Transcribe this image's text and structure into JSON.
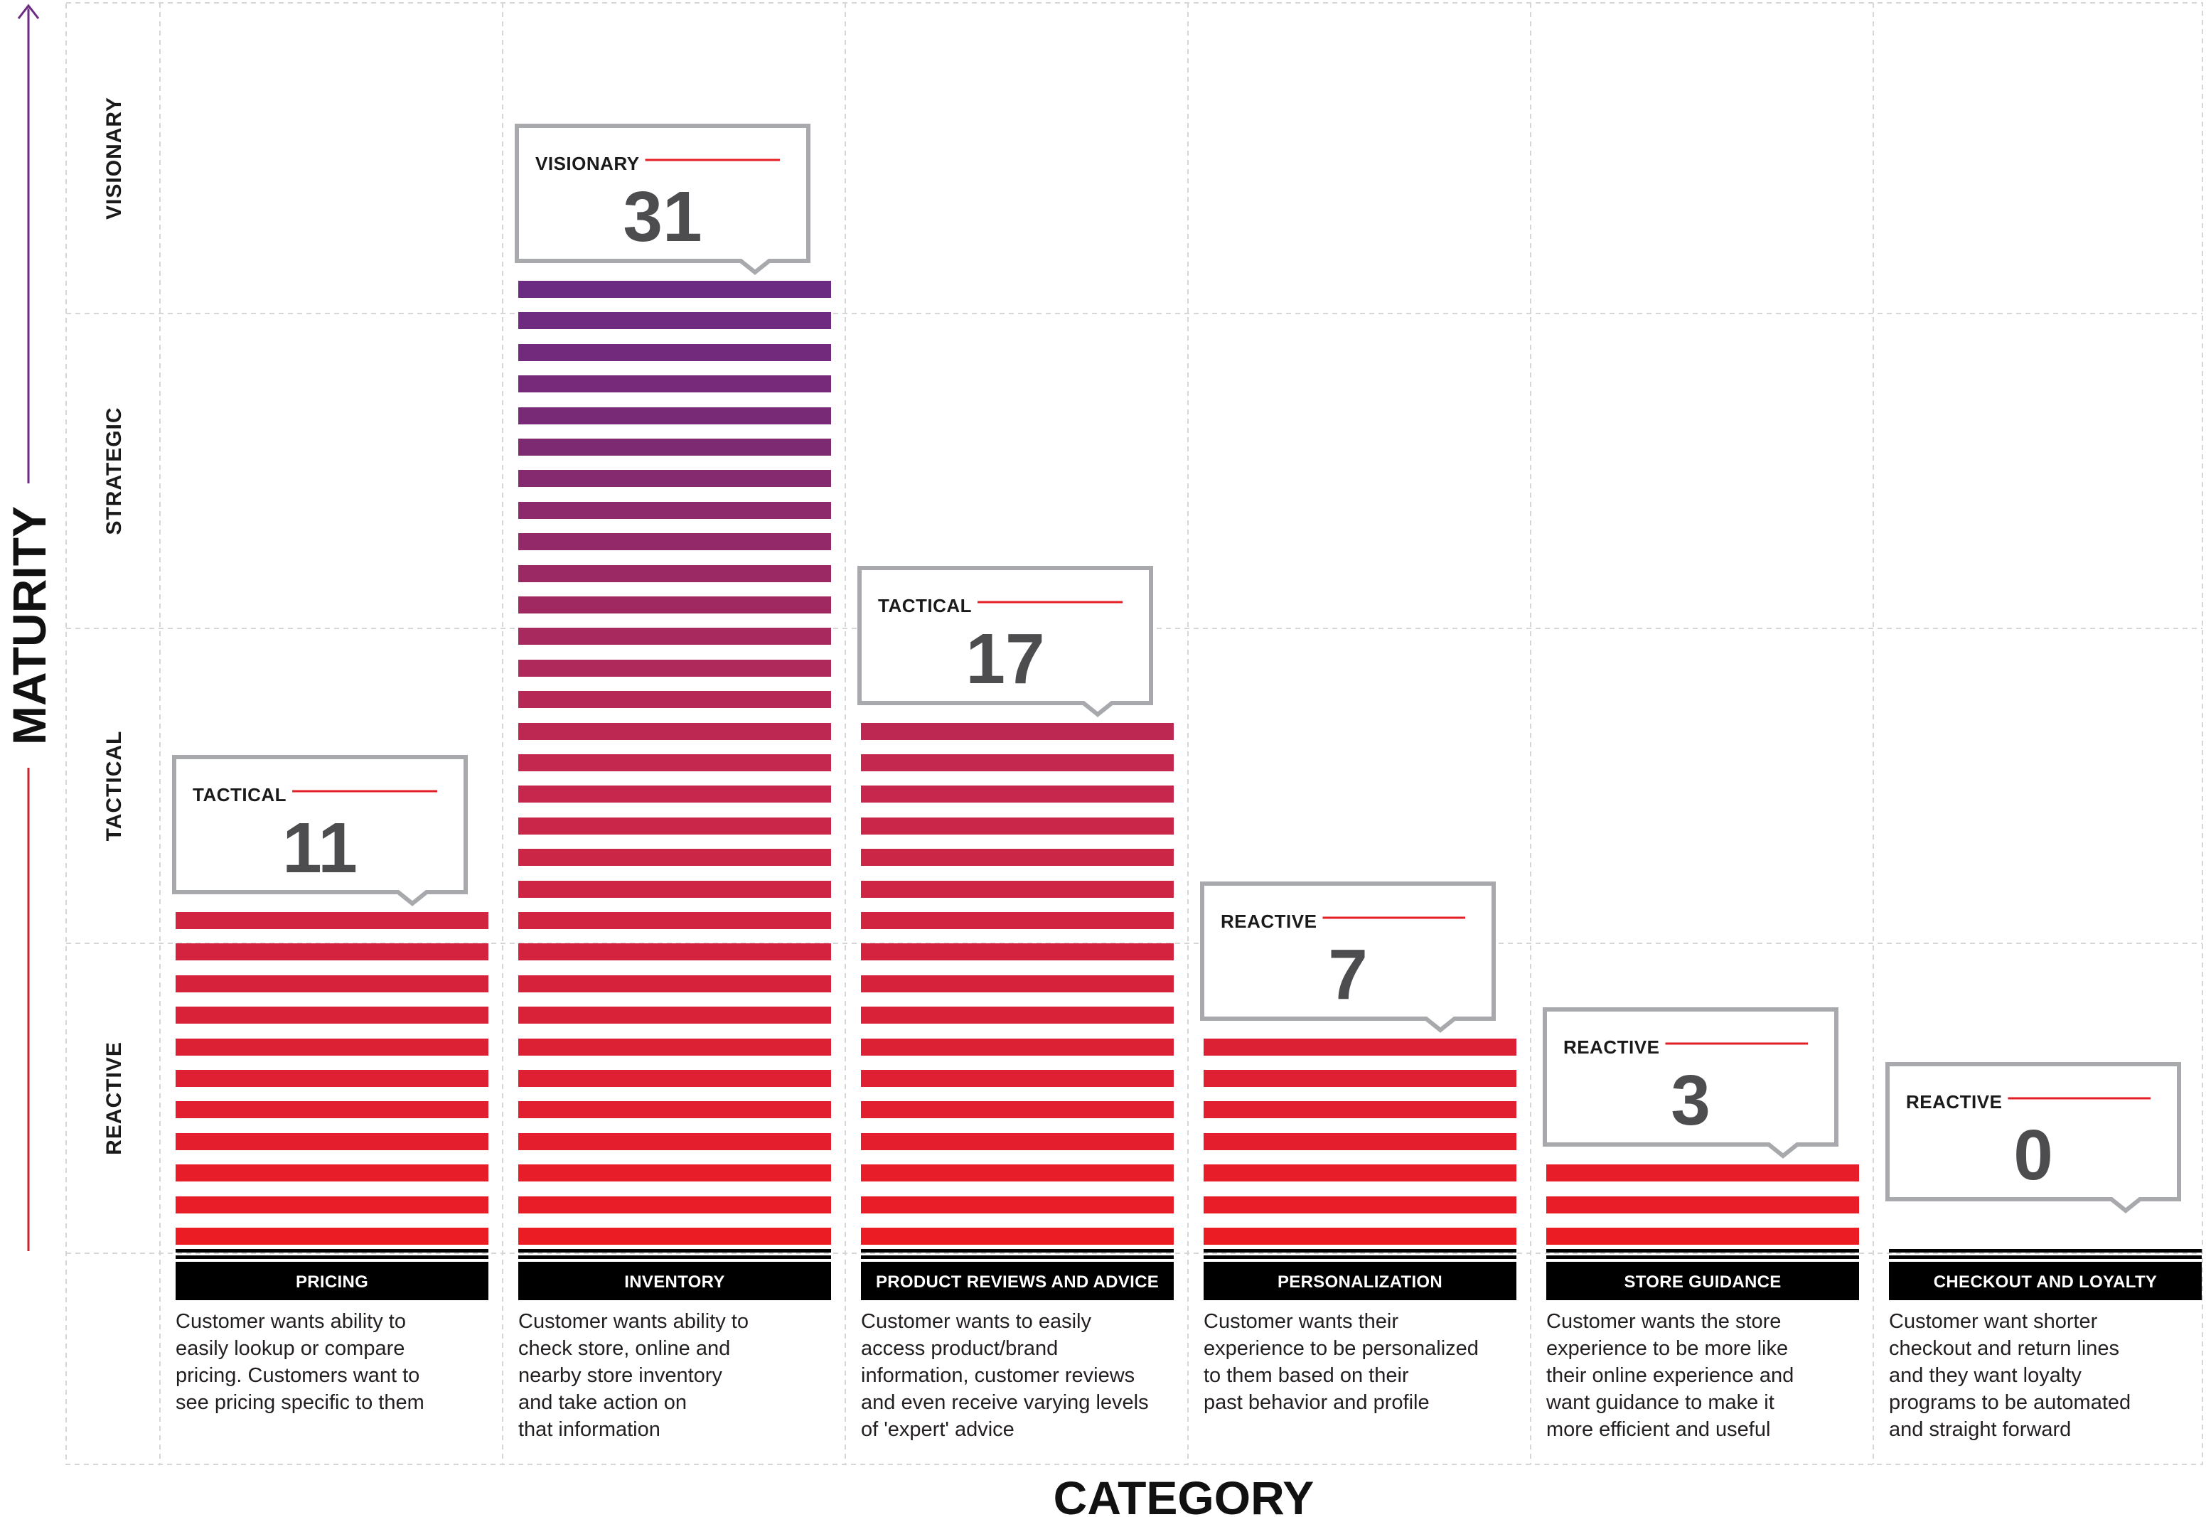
{
  "chart_data": {
    "type": "bar",
    "ylabel": "MATURITY",
    "xlabel": "CATEGORY",
    "maturity_levels": [
      "REACTIVE",
      "TACTICAL",
      "STRATEGIC",
      "VISIONARY"
    ],
    "categories": [
      "PRICING",
      "INVENTORY",
      "PRODUCT REVIEWS AND ADVICE",
      "PERSONALIZATION",
      "STORE GUIDANCE",
      "CHECKOUT AND LOYALTY"
    ],
    "values": [
      11,
      31,
      17,
      7,
      3,
      0
    ],
    "maturity": [
      "TACTICAL",
      "VISIONARY",
      "TACTICAL",
      "REACTIVE",
      "REACTIVE",
      "REACTIVE"
    ],
    "descriptions": [
      [
        "Customer wants ability to",
        "easily lookup or compare",
        "pricing. Customers want to",
        "see pricing specific to them"
      ],
      [
        "Customer wants ability to",
        "check store, online and",
        "nearby store inventory",
        "and take action on",
        "that information"
      ],
      [
        "Customer wants to easily",
        "access product/brand",
        "information, customer reviews",
        "and even receive varying levels",
        "of 'expert' advice"
      ],
      [
        "Customer wants their",
        "experience to be personalized",
        "to them based on their",
        "past behavior and profile"
      ],
      [
        "Customer wants the store",
        "experience to be more like",
        "their online experience and",
        "want guidance to make it",
        "more efficient and useful"
      ],
      [
        "Customer want shorter",
        "checkout and return lines",
        "and they want loyalty",
        "programs to be automated",
        "and straight forward"
      ]
    ],
    "ylim": [
      0,
      40
    ],
    "grid": true
  },
  "colors": {
    "bar_low": "#ec1c24",
    "bar_mid": "#c4284f",
    "bar_high": "#7b2a74",
    "bar_top": "#6b2b82",
    "axis_purple": "#6b2b82",
    "axis_red": "#c1272d",
    "bubble_border": "#a7a9ac",
    "bubble_line": "#e31e24",
    "label_bg": "#000000",
    "grid": "#d6d6d6"
  }
}
